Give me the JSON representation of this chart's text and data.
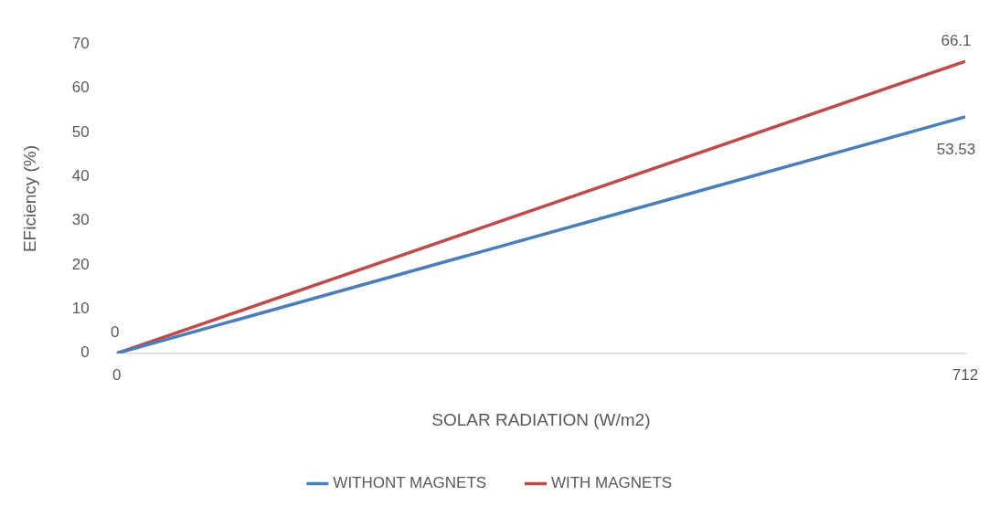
{
  "chart_data": {
    "type": "line",
    "xlabel": "SOLAR RADIATION (W/m2)",
    "ylabel": "EFiciency (%)",
    "x": [
      0,
      712
    ],
    "xlim": [
      0,
      712
    ],
    "xticks": [
      0,
      712
    ],
    "ylim": [
      0,
      70
    ],
    "yticks": [
      0,
      10,
      20,
      30,
      40,
      50,
      60,
      70
    ],
    "grid": false,
    "legend": "bottom",
    "marker": "none",
    "line_style": "solid",
    "series": [
      {
        "name": "WITHONT MAGNETS",
        "color": "#4a7ebb",
        "values": [
          0,
          53.53
        ],
        "value_labels": [
          null,
          "53.53"
        ]
      },
      {
        "name": "WITH MAGNETS",
        "color": "#be4b48",
        "values": [
          0,
          66.1
        ],
        "value_labels": [
          "0",
          "66.1"
        ]
      }
    ]
  }
}
